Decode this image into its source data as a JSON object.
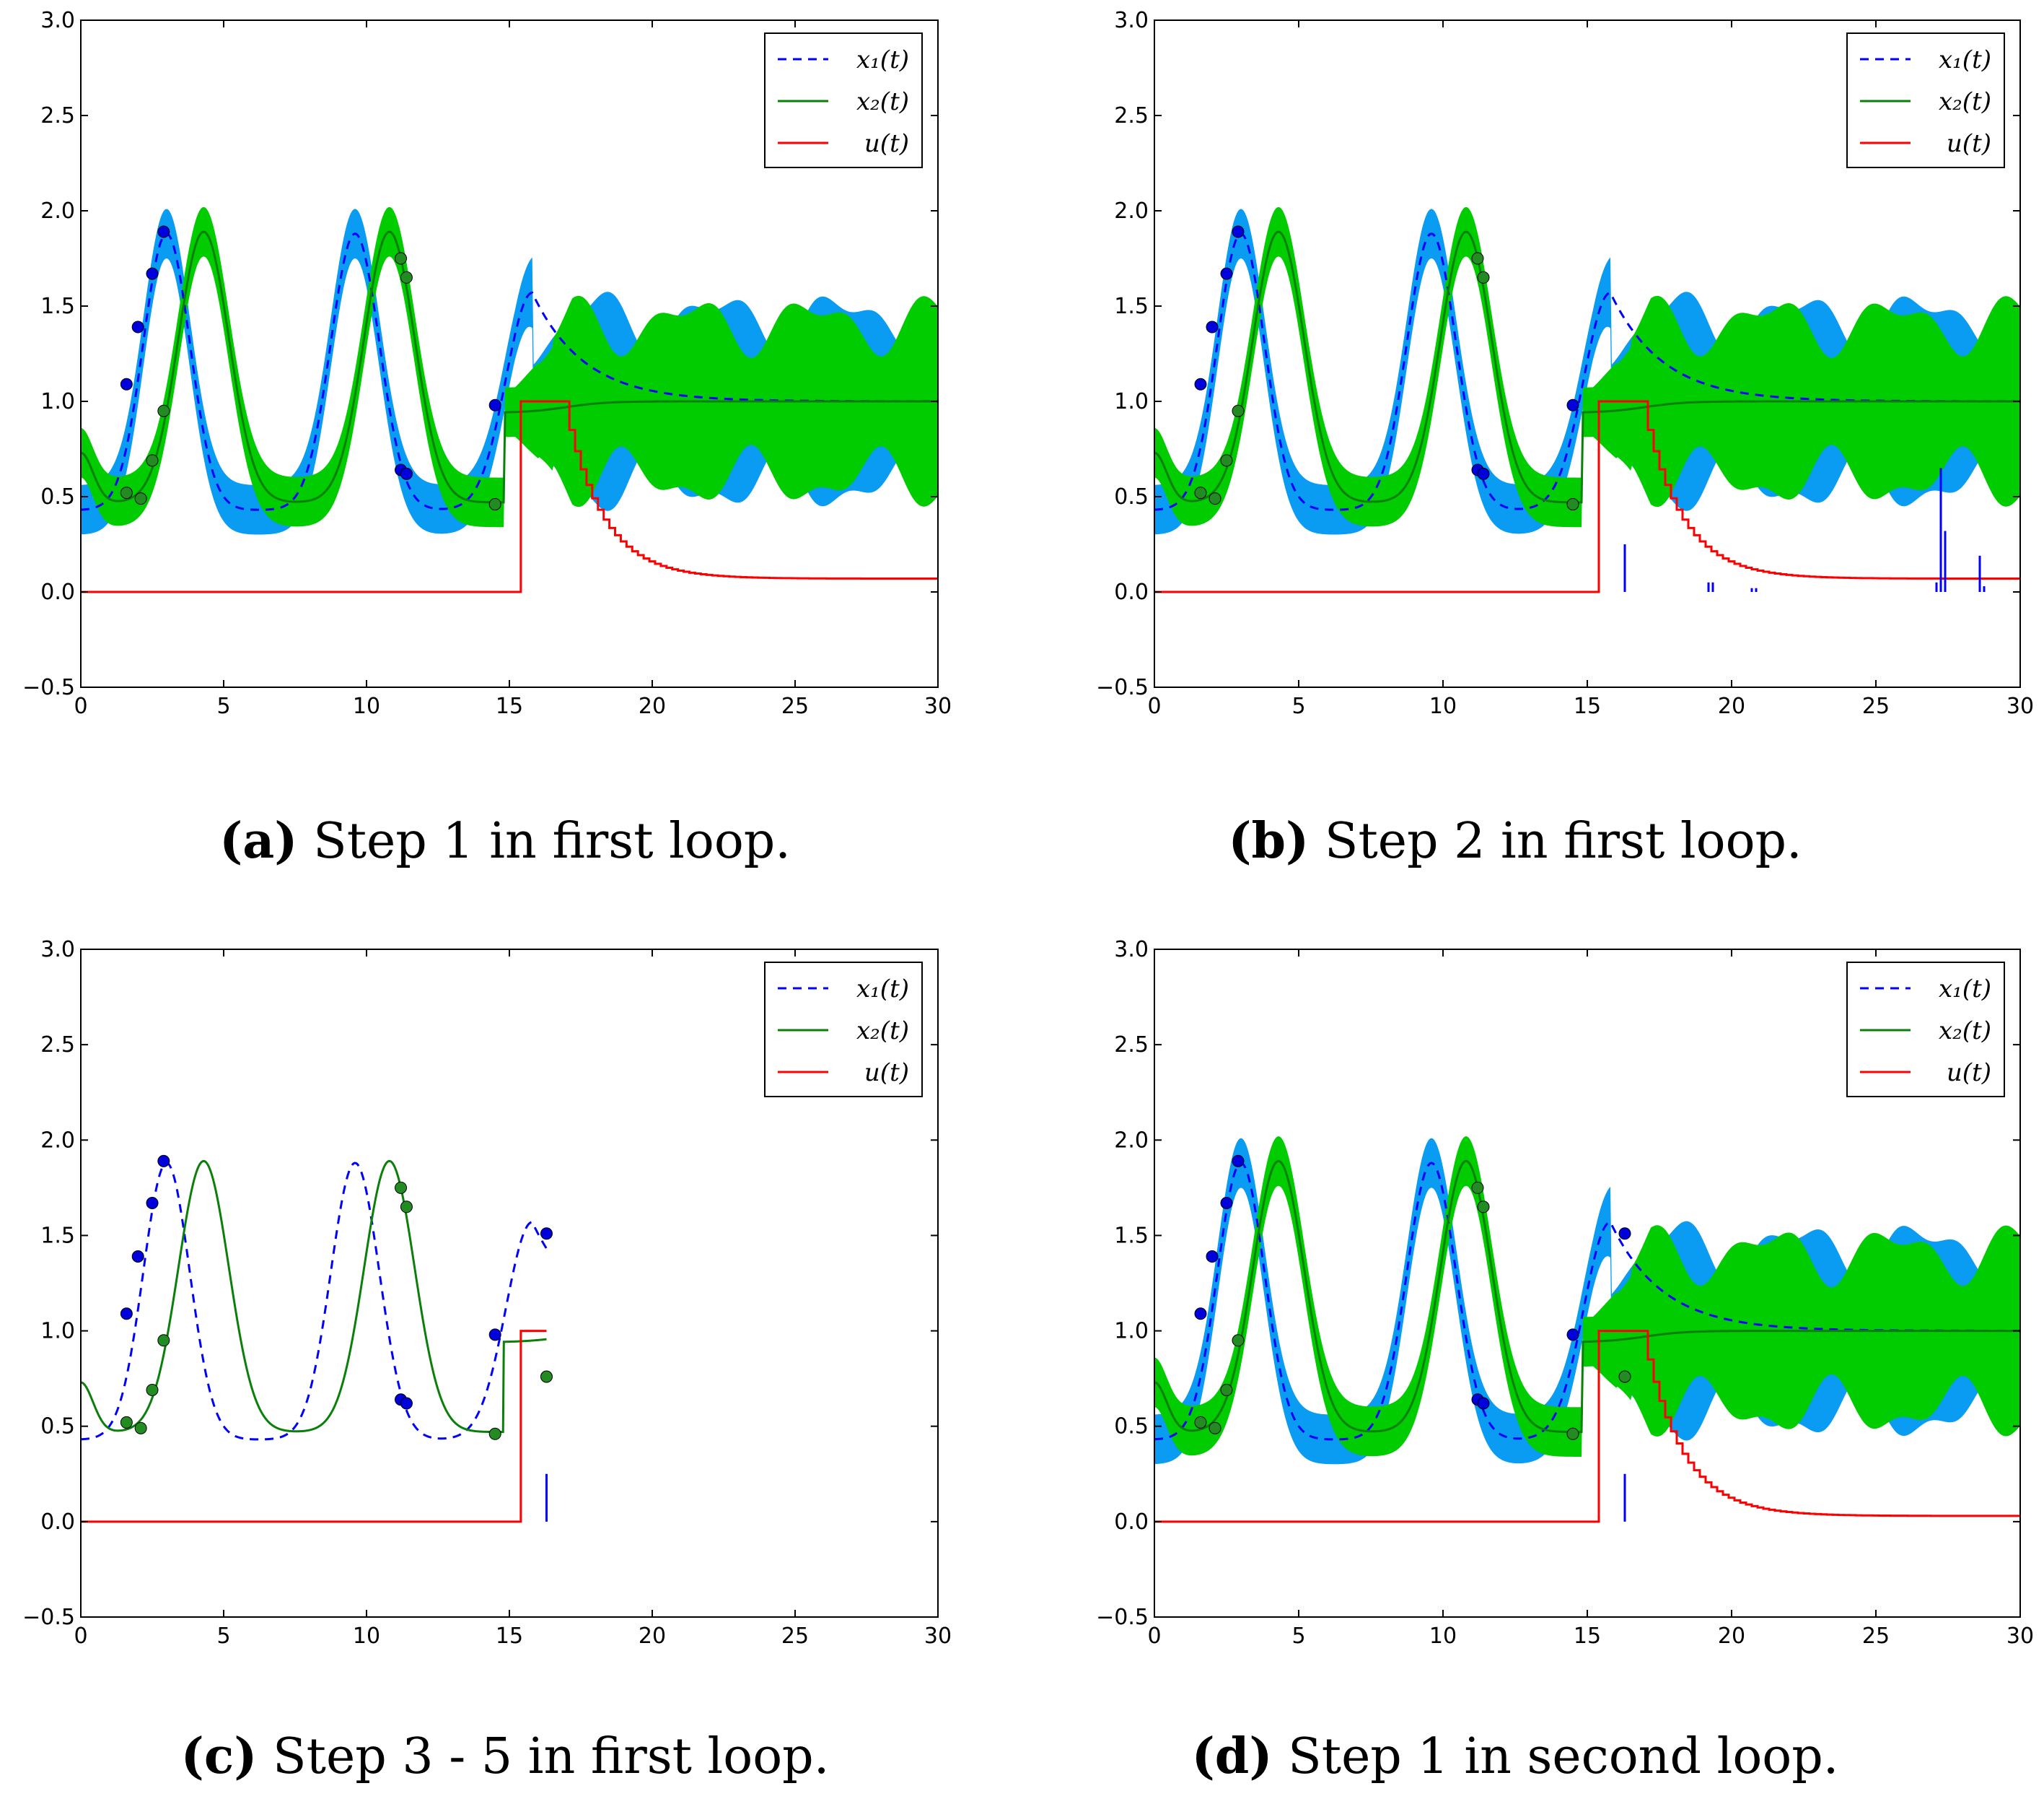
{
  "figure": {
    "colors": {
      "x1_line": "#0000ff",
      "x1_band": "#0a9cf2",
      "x2_line": "#0a7f0a",
      "x2_band": "#00cc00",
      "u_line": "#ff0000",
      "observation_x1": "#0000dd",
      "observation_x2": "#228b22",
      "spike": "#0000ff"
    }
  },
  "chart_data": [
    {
      "id": "a",
      "type": "line",
      "caption_label": "(a)",
      "caption_text": "Step 1 in first loop.",
      "title": "",
      "xlim": [
        0,
        30
      ],
      "ylim": [
        -0.5,
        3.0
      ],
      "xticks": [
        "0",
        "5",
        "10",
        "15",
        "20",
        "25",
        "30"
      ],
      "yticks": [
        "−0.5",
        "0.0",
        "0.5",
        "1.0",
        "1.5",
        "2.0",
        "2.5",
        "3.0"
      ],
      "legend": {
        "placement": "top-right",
        "entries": [
          "x₁(t)",
          "x₂(t)",
          "u(t)"
        ]
      },
      "series": [
        {
          "name": "x₁(t)",
          "style": "dashed",
          "t_end": 30,
          "band": true
        },
        {
          "name": "x₂(t)",
          "style": "solid",
          "t_end": 30,
          "band": true
        },
        {
          "name": "u(t)",
          "style": "step",
          "t_end": 30,
          "u_on": 15.4,
          "u_off": 17.1,
          "u_final": 0.07
        }
      ],
      "x1_observations": [
        [
          1.6,
          1.09
        ],
        [
          2.0,
          1.39
        ],
        [
          2.5,
          1.67
        ],
        [
          2.9,
          1.89
        ],
        [
          11.2,
          0.64
        ],
        [
          11.4,
          0.62
        ],
        [
          14.5,
          0.98
        ]
      ],
      "x2_observations": [
        [
          1.6,
          0.52
        ],
        [
          2.1,
          0.49
        ],
        [
          2.5,
          0.69
        ],
        [
          2.9,
          0.95
        ],
        [
          11.2,
          1.75
        ],
        [
          11.4,
          1.65
        ],
        [
          14.5,
          0.46
        ]
      ],
      "spikes": []
    },
    {
      "id": "b",
      "type": "line",
      "caption_label": "(b)",
      "caption_text": "Step 2 in first loop.",
      "title": "",
      "xlim": [
        0,
        30
      ],
      "ylim": [
        -0.5,
        3.0
      ],
      "xticks": [
        "0",
        "5",
        "10",
        "15",
        "20",
        "25",
        "30"
      ],
      "yticks": [
        "−0.5",
        "0.0",
        "0.5",
        "1.0",
        "1.5",
        "2.0",
        "2.5",
        "3.0"
      ],
      "legend": {
        "placement": "top-right",
        "entries": [
          "x₁(t)",
          "x₂(t)",
          "u(t)"
        ]
      },
      "series": [
        {
          "name": "x₁(t)",
          "style": "dashed",
          "t_end": 30,
          "band": true
        },
        {
          "name": "x₂(t)",
          "style": "solid",
          "t_end": 30,
          "band": true
        },
        {
          "name": "u(t)",
          "style": "step",
          "t_end": 30,
          "u_on": 15.4,
          "u_off": 17.1,
          "u_final": 0.07
        }
      ],
      "x1_observations": [
        [
          1.6,
          1.09
        ],
        [
          2.0,
          1.39
        ],
        [
          2.5,
          1.67
        ],
        [
          2.9,
          1.89
        ],
        [
          11.2,
          0.64
        ],
        [
          11.4,
          0.62
        ],
        [
          14.5,
          0.98
        ]
      ],
      "x2_observations": [
        [
          1.6,
          0.52
        ],
        [
          2.1,
          0.49
        ],
        [
          2.5,
          0.69
        ],
        [
          2.9,
          0.95
        ],
        [
          11.2,
          1.75
        ],
        [
          11.4,
          1.65
        ],
        [
          14.5,
          0.46
        ]
      ],
      "spikes": [
        [
          16.3,
          0.25
        ],
        [
          19.2,
          0.05
        ],
        [
          19.35,
          0.05
        ],
        [
          20.7,
          0.02
        ],
        [
          20.85,
          0.02
        ],
        [
          27.1,
          0.05
        ],
        [
          27.25,
          0.65
        ],
        [
          27.4,
          0.32
        ],
        [
          28.6,
          0.19
        ],
        [
          28.75,
          0.03
        ]
      ]
    },
    {
      "id": "c",
      "type": "line",
      "caption_label": "(c)",
      "caption_text": "Step 3 - 5 in first loop.",
      "title": "",
      "xlim": [
        0,
        30
      ],
      "ylim": [
        -0.5,
        3.0
      ],
      "xticks": [
        "0",
        "5",
        "10",
        "15",
        "20",
        "25",
        "30"
      ],
      "yticks": [
        "−0.5",
        "0.0",
        "0.5",
        "1.0",
        "1.5",
        "2.0",
        "2.5",
        "3.0"
      ],
      "legend": {
        "placement": "top-right",
        "entries": [
          "x₁(t)",
          "x₂(t)",
          "u(t)"
        ]
      },
      "series": [
        {
          "name": "x₁(t)",
          "style": "dashed",
          "t_end": 16.3,
          "band": false
        },
        {
          "name": "x₂(t)",
          "style": "solid",
          "t_end": 16.3,
          "band": false
        },
        {
          "name": "u(t)",
          "style": "step",
          "t_end": 16.3,
          "u_on": 15.4,
          "u_off": 99,
          "u_final": 1.0
        }
      ],
      "x1_observations": [
        [
          1.6,
          1.09
        ],
        [
          2.0,
          1.39
        ],
        [
          2.5,
          1.67
        ],
        [
          2.9,
          1.89
        ],
        [
          11.2,
          0.64
        ],
        [
          11.4,
          0.62
        ],
        [
          14.5,
          0.98
        ],
        [
          16.3,
          1.51
        ]
      ],
      "x2_observations": [
        [
          1.6,
          0.52
        ],
        [
          2.1,
          0.49
        ],
        [
          2.5,
          0.69
        ],
        [
          2.9,
          0.95
        ],
        [
          11.2,
          1.75
        ],
        [
          11.4,
          1.65
        ],
        [
          14.5,
          0.46
        ],
        [
          16.3,
          0.76
        ]
      ],
      "spikes": [
        [
          16.3,
          0.25
        ]
      ]
    },
    {
      "id": "d",
      "type": "line",
      "caption_label": "(d)",
      "caption_text": " Step 1 in second loop.",
      "title": "",
      "xlim": [
        0,
        30
      ],
      "ylim": [
        -0.5,
        3.0
      ],
      "xticks": [
        "0",
        "5",
        "10",
        "15",
        "20",
        "25",
        "30"
      ],
      "yticks": [
        "−0.5",
        "0.0",
        "0.5",
        "1.0",
        "1.5",
        "2.0",
        "2.5",
        "3.0"
      ],
      "legend": {
        "placement": "top-right",
        "entries": [
          "x₁(t)",
          "x₂(t)",
          "u(t)"
        ]
      },
      "series": [
        {
          "name": "x₁(t)",
          "style": "dashed",
          "t_end": 30,
          "band": true
        },
        {
          "name": "x₂(t)",
          "style": "solid",
          "t_end": 30,
          "band": true
        },
        {
          "name": "u(t)",
          "style": "step",
          "t_end": 30,
          "u_on": 15.4,
          "u_off": 17.1,
          "u_final": 0.03
        }
      ],
      "x1_observations": [
        [
          1.6,
          1.09
        ],
        [
          2.0,
          1.39
        ],
        [
          2.5,
          1.67
        ],
        [
          2.9,
          1.89
        ],
        [
          11.2,
          0.64
        ],
        [
          11.4,
          0.62
        ],
        [
          14.5,
          0.98
        ],
        [
          16.3,
          1.51
        ]
      ],
      "x2_observations": [
        [
          1.6,
          0.52
        ],
        [
          2.1,
          0.49
        ],
        [
          2.5,
          0.69
        ],
        [
          2.9,
          0.95
        ],
        [
          11.2,
          1.75
        ],
        [
          11.4,
          1.65
        ],
        [
          14.5,
          0.46
        ],
        [
          16.3,
          0.76
        ]
      ],
      "spikes": [
        [
          16.3,
          0.25
        ]
      ]
    }
  ]
}
